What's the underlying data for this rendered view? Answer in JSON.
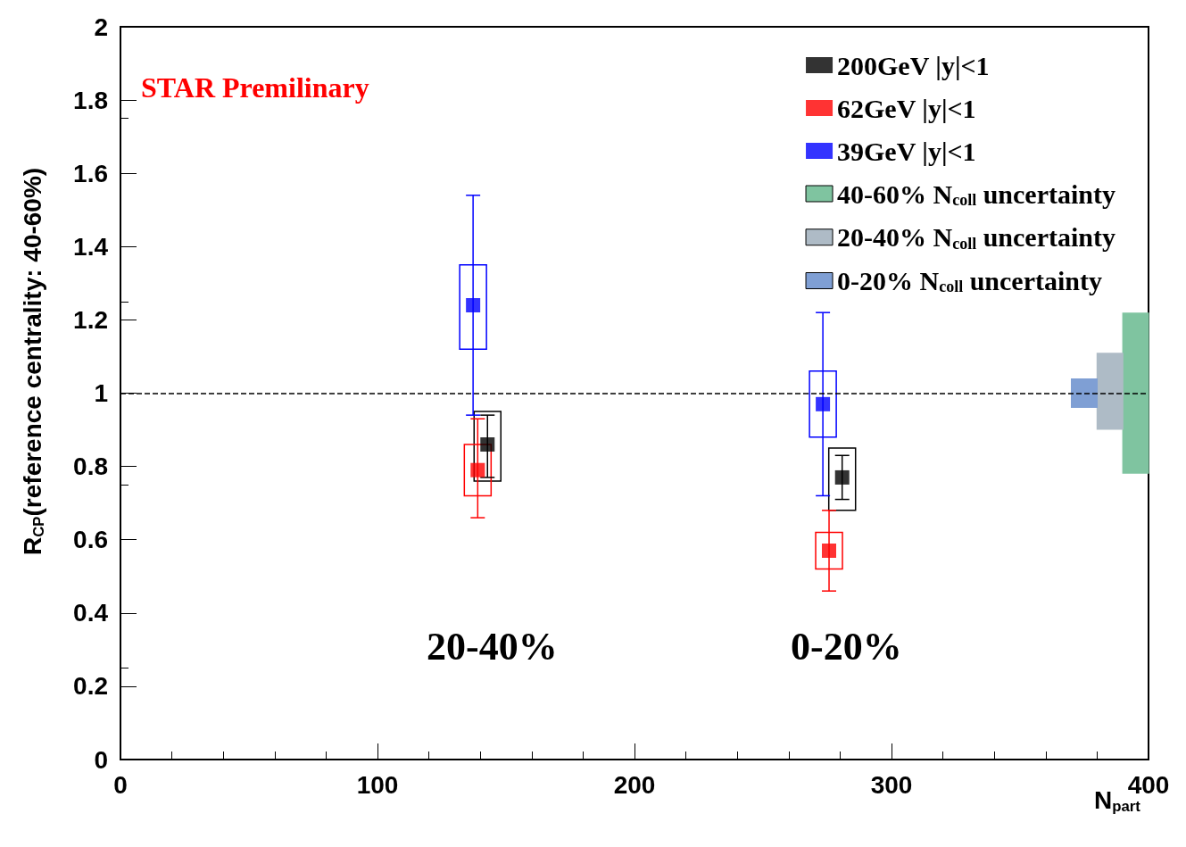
{
  "chart_data": {
    "type": "scatter",
    "xlabel": "N$_{part}$",
    "ylabel": "R$_{CP}$(reference centrality: 40-60%)",
    "xlim": [
      0,
      400
    ],
    "xticks": [
      0,
      100,
      200,
      300,
      400
    ],
    "ylim": [
      0,
      2
    ],
    "yticks": [
      0,
      0.2,
      0.4,
      0.6,
      0.8,
      1,
      1.2,
      1.4,
      1.6,
      1.8,
      2
    ],
    "grid": false,
    "legend": "top right",
    "marker": "square",
    "series": [
      {
        "name": "200GeV |y|<1",
        "color": "#000000",
        "x": [
          142.8,
          280.8
        ],
        "values": [
          0.86,
          0.77
        ],
        "errors": [
          [
            0.77,
            0.94
          ],
          [
            0.71,
            0.83
          ]
        ]
      },
      {
        "type": "bar",
        "color": "#000000",
        "line_style": "solid",
        "x": [
          142.8,
          280.8
        ],
        "base": [
          0.76,
          0.68
        ],
        "values": [
          0.19,
          0.17
        ]
      },
      {
        "name": "62GeV |y|<1",
        "color": "#ff0000",
        "x": [
          139,
          275.7
        ],
        "values": [
          0.79,
          0.57
        ],
        "errors": [
          [
            0.66,
            0.93
          ],
          [
            0.46,
            0.68
          ]
        ]
      },
      {
        "type": "bar",
        "color": "#ff0000",
        "line_style": "solid",
        "x": [
          139,
          275.7
        ],
        "base": [
          0.72,
          0.52
        ],
        "values": [
          0.14,
          0.1
        ]
      },
      {
        "name": "39GeV |y|<1",
        "color": "#0000ff",
        "x": [
          137.2,
          273.3
        ],
        "values": [
          1.24,
          0.97
        ],
        "errors": [
          [
            0.94,
            1.54
          ],
          [
            0.72,
            1.22
          ]
        ]
      },
      {
        "type": "bar",
        "color": "#0000ff",
        "line_style": "solid",
        "x": [
          137.2,
          273.3
        ],
        "base": [
          1.12,
          0.88
        ],
        "values": [
          0.23,
          0.18
        ]
      },
      {
        "name": "40-60% N$_{coll}$ uncertainty",
        "type": "bar",
        "color": "#7fc4a0",
        "x": [
          395
        ],
        "base": [
          0.78
        ],
        "values": [
          0.44
        ]
      },
      {
        "name": "20-40% N$_{coll}$ uncertainty",
        "type": "bar",
        "color": "#aebbc6",
        "x": [
          385
        ],
        "base": [
          0.9
        ],
        "values": [
          0.21
        ]
      },
      {
        "name": "0-20% N$_{coll}$ uncertainty",
        "type": "bar",
        "color": "#7f9fd4",
        "x": [
          375
        ],
        "base": [
          0.96
        ],
        "values": [
          0.08
        ]
      }
    ],
    "ref_lines": [
      {
        "axis": "y",
        "value": 1,
        "color": "#000000",
        "line_style": "dashed"
      }
    ],
    "annotations": [
      "STAR Premilinary",
      "20-40%",
      "0-20%"
    ]
  }
}
